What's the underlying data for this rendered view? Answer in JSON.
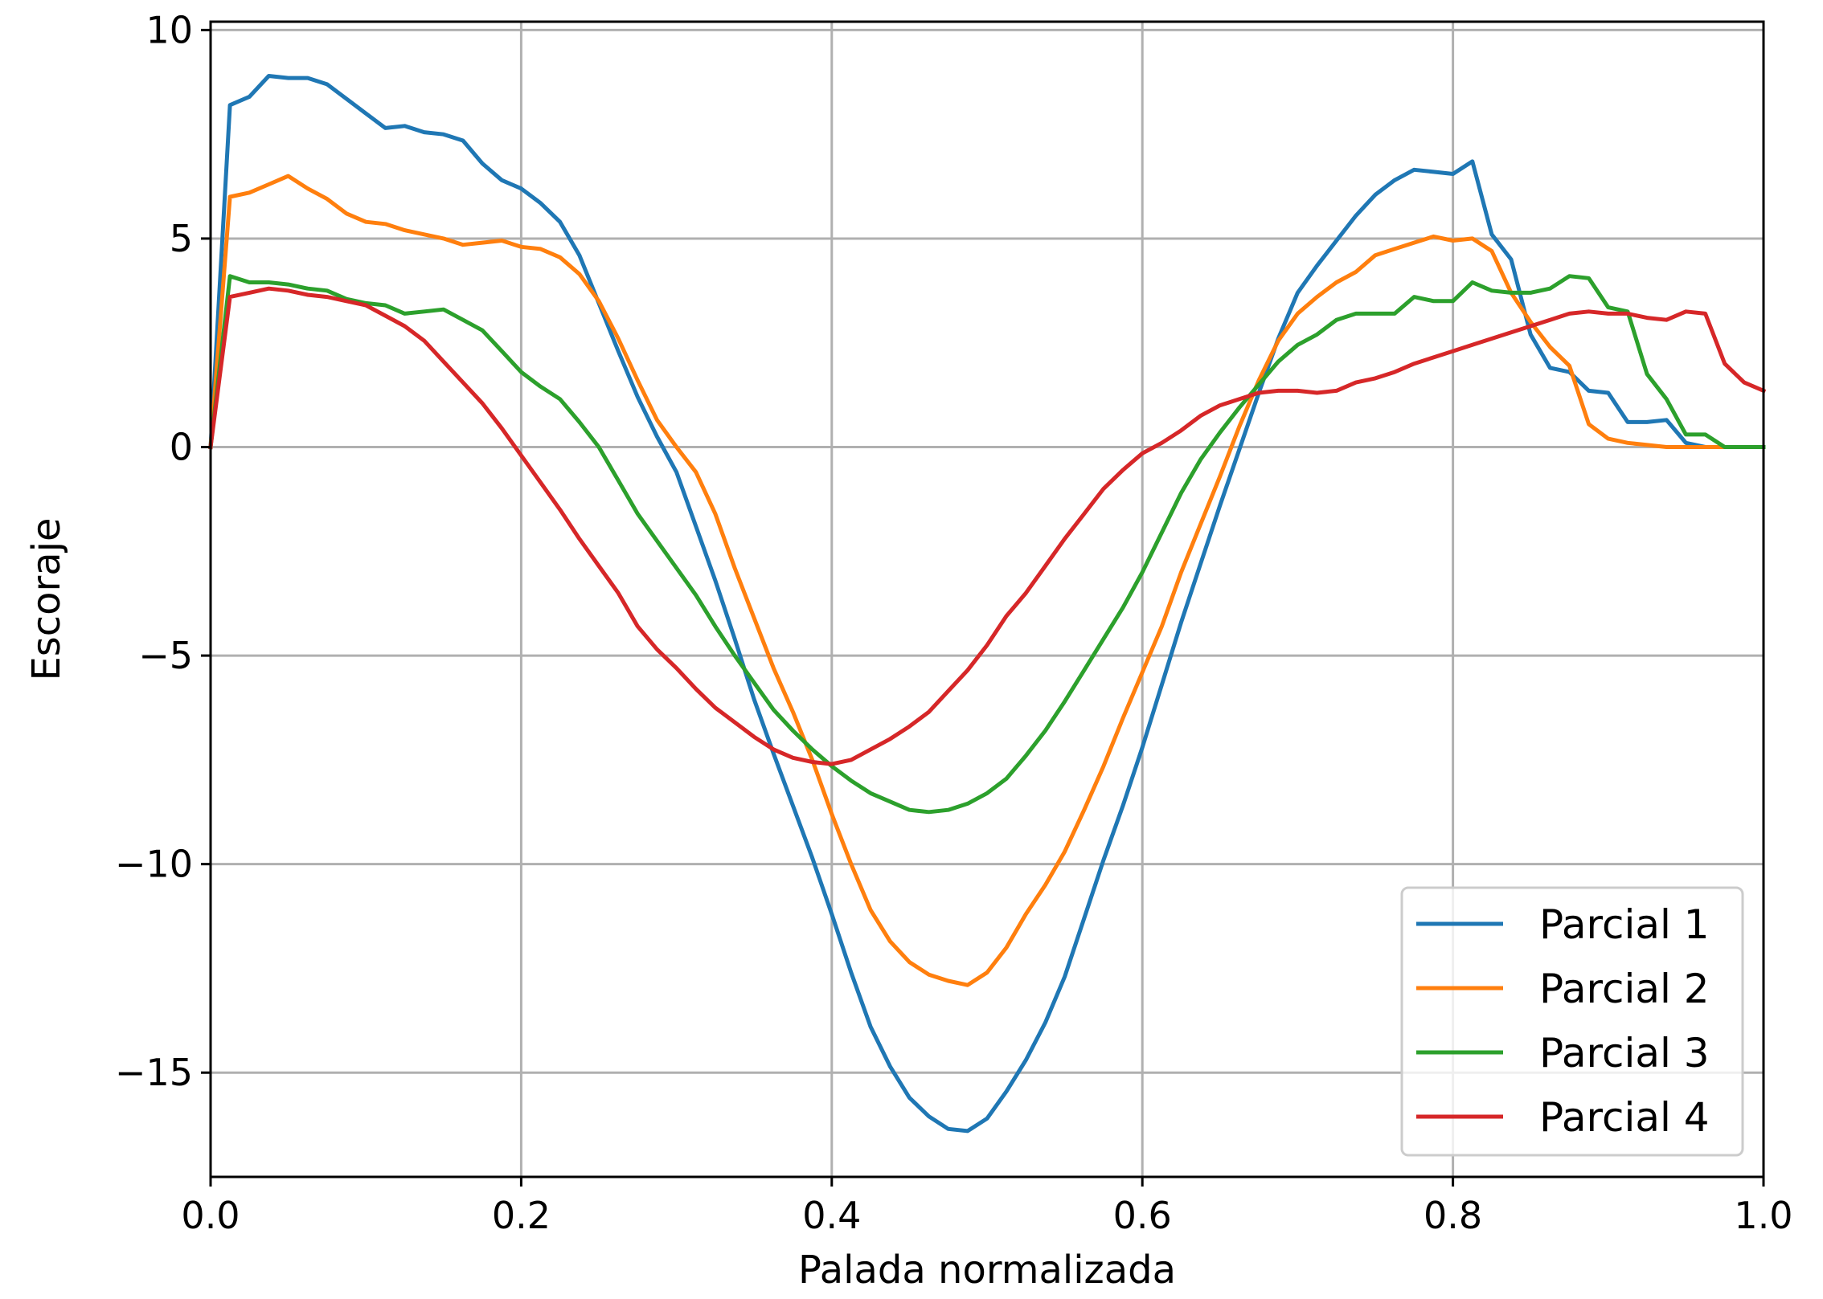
{
  "chart_data": {
    "type": "line",
    "title": "",
    "xlabel": "Palada normalizada",
    "ylabel": "Escoraje",
    "xlim": [
      0.0,
      1.0
    ],
    "ylim": [
      -17.5,
      10.2
    ],
    "xticks": [
      0.0,
      0.2,
      0.4,
      0.6,
      0.8,
      1.0
    ],
    "xtick_labels": [
      "0.0",
      "0.2",
      "0.4",
      "0.6",
      "0.8",
      "1.0"
    ],
    "yticks": [
      10,
      5,
      0,
      -5,
      -10,
      -15
    ],
    "ytick_labels": [
      "10",
      "5",
      "0",
      "−5",
      "−10",
      "−15"
    ],
    "grid": true,
    "legend_position": "lower-right",
    "x": [
      0.0,
      0.0125,
      0.025,
      0.0375,
      0.05,
      0.0625,
      0.075,
      0.0875,
      0.1,
      0.1125,
      0.125,
      0.1375,
      0.15,
      0.1625,
      0.175,
      0.1875,
      0.2,
      0.2125,
      0.225,
      0.2375,
      0.25,
      0.2625,
      0.275,
      0.2875,
      0.3,
      0.3125,
      0.325,
      0.3375,
      0.35,
      0.3625,
      0.375,
      0.3875,
      0.4,
      0.4125,
      0.425,
      0.4375,
      0.45,
      0.4625,
      0.475,
      0.4875,
      0.5,
      0.5125,
      0.525,
      0.5375,
      0.55,
      0.5625,
      0.575,
      0.5875,
      0.6,
      0.6125,
      0.625,
      0.6375,
      0.65,
      0.6625,
      0.675,
      0.6875,
      0.7,
      0.7125,
      0.725,
      0.7375,
      0.75,
      0.7625,
      0.775,
      0.7875,
      0.8,
      0.8125,
      0.825,
      0.8375,
      0.85,
      0.8625,
      0.875,
      0.8875,
      0.9,
      0.9125,
      0.925,
      0.9375,
      0.95,
      0.9625,
      0.975,
      0.9875,
      1.0
    ],
    "series": [
      {
        "name": "Parcial 1",
        "color": "#1f77b4",
        "values": [
          0,
          8.2,
          8.4,
          8.9,
          8.85,
          8.85,
          8.7,
          8.35,
          8.0,
          7.65,
          7.7,
          7.55,
          7.5,
          7.35,
          6.8,
          6.4,
          6.2,
          5.85,
          5.4,
          4.6,
          3.45,
          2.3,
          1.2,
          0.25,
          -0.6,
          -1.9,
          -3.2,
          -4.6,
          -6.05,
          -7.35,
          -8.6,
          -9.85,
          -11.2,
          -12.6,
          -13.9,
          -14.85,
          -15.6,
          -16.05,
          -16.35,
          -16.4,
          -16.1,
          -15.45,
          -14.7,
          -13.8,
          -12.7,
          -11.3,
          -9.9,
          -8.6,
          -7.2,
          -5.7,
          -4.2,
          -2.8,
          -1.4,
          -0.05,
          1.3,
          2.6,
          3.7,
          4.35,
          4.95,
          5.55,
          6.05,
          6.4,
          6.65,
          6.6,
          6.55,
          6.85,
          5.1,
          4.5,
          2.7,
          1.9,
          1.8,
          1.35,
          1.3,
          0.6,
          0.6,
          0.65,
          0.1,
          0.0,
          0.0,
          0.0,
          0.0
        ]
      },
      {
        "name": "Parcial 2",
        "color": "#ff7f0e",
        "values": [
          0,
          6.0,
          6.1,
          6.3,
          6.5,
          6.2,
          5.95,
          5.6,
          5.4,
          5.35,
          5.2,
          5.1,
          5.0,
          4.85,
          4.9,
          4.95,
          4.8,
          4.75,
          4.55,
          4.15,
          3.5,
          2.6,
          1.6,
          0.65,
          0.0,
          -0.6,
          -1.6,
          -2.9,
          -4.1,
          -5.3,
          -6.35,
          -7.5,
          -8.8,
          -10.0,
          -11.1,
          -11.85,
          -12.35,
          -12.65,
          -12.8,
          -12.9,
          -12.6,
          -12.0,
          -11.2,
          -10.5,
          -9.7,
          -8.7,
          -7.65,
          -6.5,
          -5.4,
          -4.3,
          -3.0,
          -1.85,
          -0.7,
          0.5,
          1.6,
          2.55,
          3.2,
          3.6,
          3.95,
          4.2,
          4.6,
          4.75,
          4.9,
          5.05,
          4.95,
          5.0,
          4.7,
          3.7,
          3.0,
          2.4,
          1.95,
          0.55,
          0.2,
          0.1,
          0.05,
          0.0,
          0.0,
          0.0,
          0.0,
          0.0,
          0.0
        ]
      },
      {
        "name": "Parcial 3",
        "color": "#2ca02c",
        "values": [
          0,
          4.1,
          3.95,
          3.95,
          3.9,
          3.8,
          3.75,
          3.55,
          3.45,
          3.4,
          3.2,
          3.25,
          3.3,
          3.05,
          2.8,
          2.3,
          1.8,
          1.45,
          1.15,
          0.6,
          0.0,
          -0.8,
          -1.6,
          -2.25,
          -2.9,
          -3.55,
          -4.3,
          -5.0,
          -5.65,
          -6.3,
          -6.8,
          -7.25,
          -7.65,
          -8.0,
          -8.3,
          -8.5,
          -8.7,
          -8.75,
          -8.7,
          -8.55,
          -8.3,
          -7.95,
          -7.4,
          -6.8,
          -6.1,
          -5.35,
          -4.6,
          -3.85,
          -3.0,
          -2.05,
          -1.1,
          -0.3,
          0.35,
          0.95,
          1.5,
          2.05,
          2.45,
          2.7,
          3.05,
          3.2,
          3.2,
          3.2,
          3.6,
          3.5,
          3.5,
          3.95,
          3.75,
          3.7,
          3.7,
          3.8,
          4.1,
          4.05,
          3.35,
          3.25,
          1.75,
          1.15,
          0.3,
          0.3,
          0.0,
          0.0,
          0.0
        ]
      },
      {
        "name": "Parcial 4",
        "color": "#d62728",
        "values": [
          0,
          3.6,
          3.7,
          3.8,
          3.75,
          3.65,
          3.6,
          3.5,
          3.4,
          3.15,
          2.9,
          2.55,
          2.05,
          1.55,
          1.05,
          0.45,
          -0.2,
          -0.85,
          -1.5,
          -2.2,
          -2.85,
          -3.5,
          -4.3,
          -4.85,
          -5.3,
          -5.8,
          -6.25,
          -6.6,
          -6.95,
          -7.25,
          -7.45,
          -7.55,
          -7.6,
          -7.5,
          -7.25,
          -7.0,
          -6.7,
          -6.35,
          -5.85,
          -5.35,
          -4.75,
          -4.05,
          -3.5,
          -2.85,
          -2.2,
          -1.6,
          -1.0,
          -0.55,
          -0.15,
          0.1,
          0.4,
          0.75,
          1.0,
          1.15,
          1.3,
          1.35,
          1.35,
          1.3,
          1.35,
          1.55,
          1.65,
          1.8,
          2.0,
          2.15,
          2.3,
          2.45,
          2.6,
          2.75,
          2.9,
          3.05,
          3.2,
          3.25,
          3.2,
          3.2,
          3.1,
          3.05,
          3.25,
          3.2,
          2.0,
          1.55,
          1.35
        ]
      }
    ]
  }
}
